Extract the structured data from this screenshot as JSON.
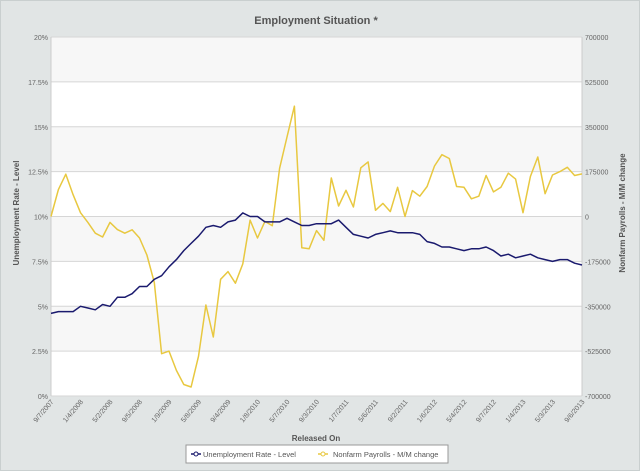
{
  "chart_data": {
    "type": "line",
    "title": "Employment Situation *",
    "xlabel": "Released On",
    "ylabel_left": "Unemployment Rate - Level",
    "ylabel_right": "Nonfarm Payrolls - M/M change",
    "ylim_left": [
      0,
      20
    ],
    "ylim_right": [
      -700000,
      700000
    ],
    "yticks_left": [
      "0%",
      "2.5%",
      "5%",
      "7.5%",
      "10%",
      "12.5%",
      "15%",
      "17.5%",
      "20%"
    ],
    "yticks_right": [
      "-700000",
      "-525000",
      "-350000",
      "-175000",
      "0",
      "175000",
      "350000",
      "525000",
      "700000"
    ],
    "xticks": [
      "9/7/2007",
      "1/4/2008",
      "5/2/2008",
      "9/5/2008",
      "1/9/2009",
      "5/8/2009",
      "9/4/2009",
      "1/8/2010",
      "5/7/2010",
      "9/3/2010",
      "1/7/2011",
      "5/6/2011",
      "9/2/2011",
      "1/6/2012",
      "5/4/2012",
      "9/7/2012",
      "1/4/2013",
      "5/3/2013",
      "9/6/2013"
    ],
    "x_start": "2007-09",
    "x_end": "2013-09",
    "x_interval": "monthly",
    "grid": true,
    "legend_position": "bottom",
    "series": [
      {
        "name": "Unemployment Rate - Level",
        "axis": "left",
        "color": "#1a1a6e",
        "values": [
          4.6,
          4.7,
          4.7,
          4.7,
          5.0,
          4.9,
          4.8,
          5.1,
          5.0,
          5.5,
          5.5,
          5.7,
          6.1,
          6.1,
          6.5,
          6.7,
          7.2,
          7.6,
          8.1,
          8.5,
          8.9,
          9.4,
          9.5,
          9.4,
          9.7,
          9.8,
          10.2,
          10.0,
          10.0,
          9.7,
          9.7,
          9.7,
          9.9,
          9.7,
          9.5,
          9.5,
          9.6,
          9.6,
          9.6,
          9.8,
          9.4,
          9.0,
          8.9,
          8.8,
          9.0,
          9.1,
          9.2,
          9.1,
          9.1,
          9.1,
          9.0,
          8.6,
          8.5,
          8.3,
          8.3,
          8.2,
          8.1,
          8.2,
          8.2,
          8.3,
          8.1,
          7.8,
          7.9,
          7.7,
          7.8,
          7.9,
          7.7,
          7.6,
          7.5,
          7.6,
          7.6,
          7.4,
          7.3
        ]
      },
      {
        "name": "Nonfarm Payrolls - M/M change",
        "axis": "right",
        "color": "#e8c840",
        "values": [
          0,
          105000,
          165000,
          85000,
          15000,
          -23000,
          -65000,
          -80000,
          -23000,
          -51000,
          -65000,
          -52000,
          -84000,
          -150000,
          -257000,
          -535000,
          -525000,
          -600000,
          -655000,
          -665000,
          -545000,
          -345000,
          -470000,
          -245000,
          -215000,
          -260000,
          -185000,
          -14000,
          -84000,
          -19000,
          -36000,
          188000,
          310000,
          430000,
          -122000,
          -126000,
          -55000,
          -93000,
          150000,
          41000,
          102000,
          37000,
          190000,
          213000,
          24000,
          51000,
          19000,
          114000,
          0,
          101000,
          79000,
          117000,
          197000,
          241000,
          226000,
          117000,
          114000,
          69000,
          79000,
          160000,
          96000,
          114000,
          169000,
          146000,
          15000,
          156000,
          232000,
          89000,
          162000,
          175000,
          192000,
          160000,
          166000
        ]
      }
    ]
  }
}
